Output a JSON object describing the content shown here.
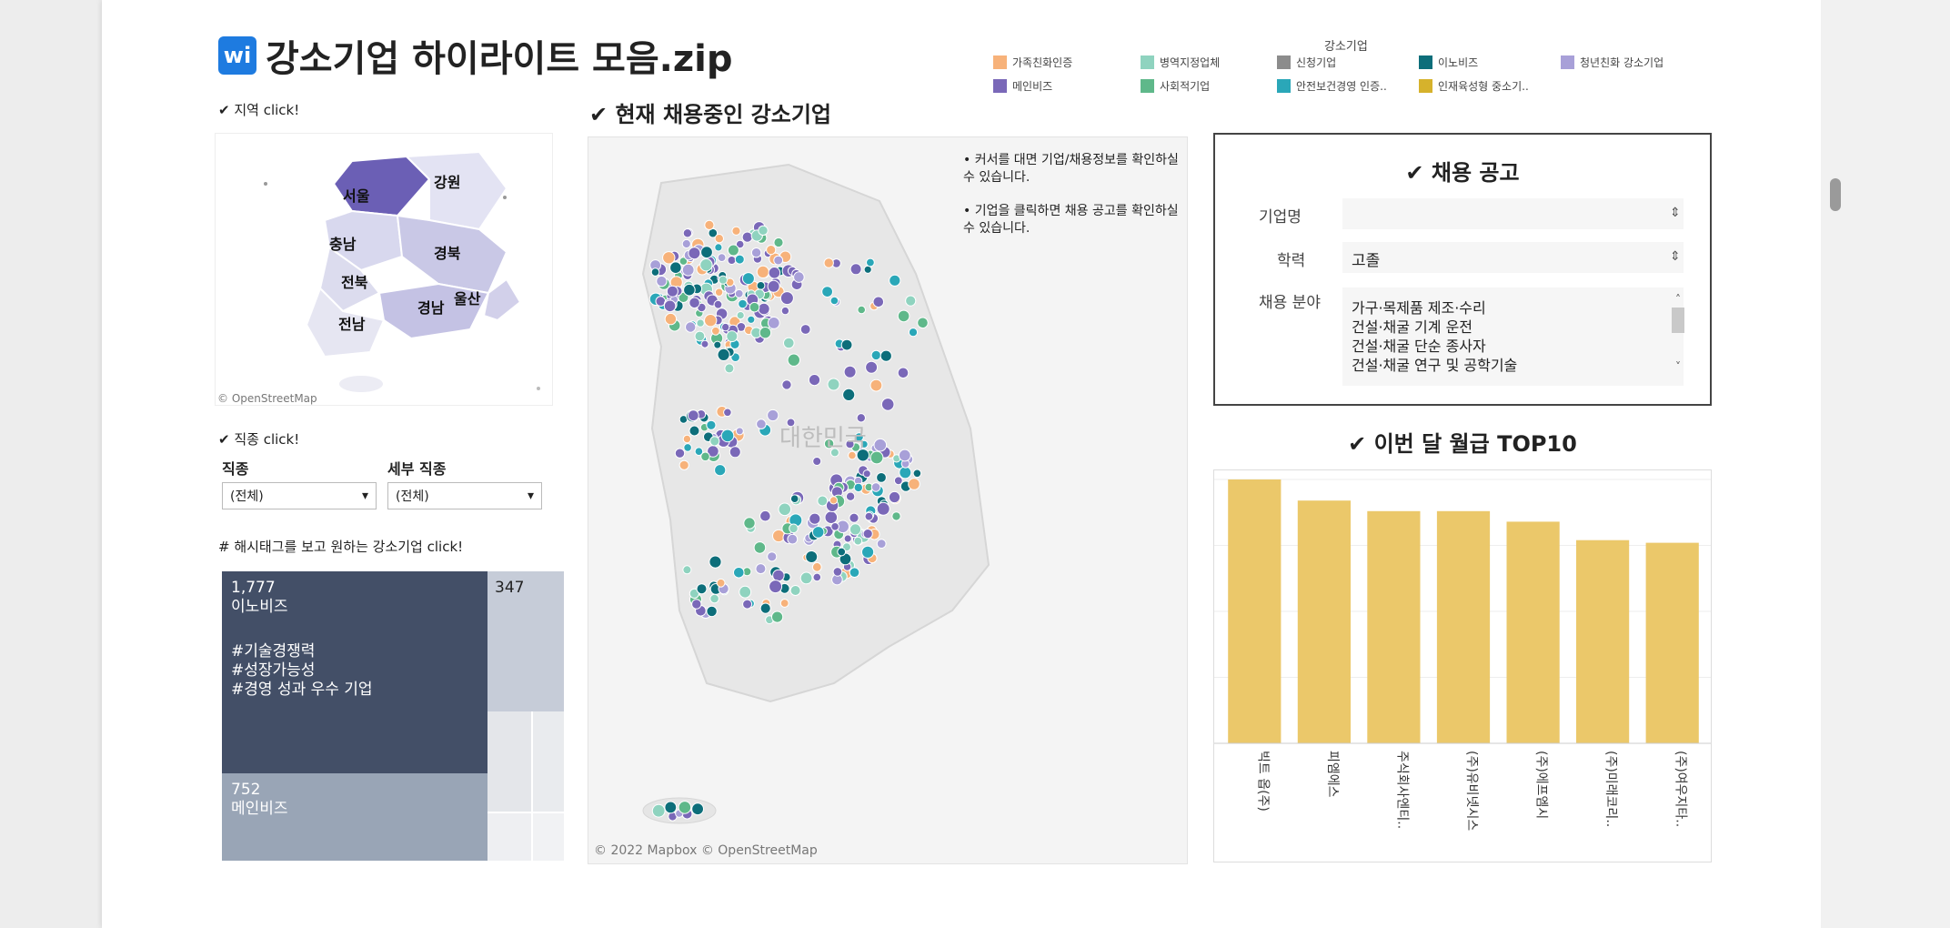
{
  "dashboard": {
    "logo_text": "ᴡi",
    "title": "강소기업 하이라이트 모음.zip"
  },
  "legend": {
    "title": "강소기업",
    "items": [
      {
        "label": "가족친화인증",
        "color": "#f7b27a"
      },
      {
        "label": "병역지정업체",
        "color": "#8fd3bf"
      },
      {
        "label": "신청기업",
        "color": "#8c8c8c"
      },
      {
        "label": "이노비즈",
        "color": "#0d6e7a"
      },
      {
        "label": "청년친화 강소기업",
        "color": "#a8a0d8"
      },
      {
        "label": "메인비즈",
        "color": "#7a68b8"
      },
      {
        "label": "사회적기업",
        "color": "#5fb88a"
      },
      {
        "label": "안전보건경영 인증..",
        "color": "#2aa7b8"
      },
      {
        "label": "인재육성형 중소기..",
        "color": "#d6b22c"
      }
    ]
  },
  "region_panel": {
    "hint": "✔ 지역 click!",
    "regions": [
      "서울",
      "강원",
      "충남",
      "경북",
      "전북",
      "경남",
      "울산",
      "전남"
    ],
    "attribution": "© OpenStreetMap"
  },
  "job_filter": {
    "hint": "✔ 직종 click!",
    "job_label": "직종",
    "job_value": "(전체)",
    "detail_label": "세부 직종",
    "detail_value": "(전체)"
  },
  "hashtag_panel": {
    "hint": "# 해시태그를 보고 원하는 강소기업 click!",
    "tiles": [
      {
        "count": "1,777",
        "name": "이노비즈",
        "tags": [
          "#기술경쟁력",
          "#성장가능성",
          "#경영 성과 우수 기업"
        ]
      },
      {
        "count": "347",
        "name": ""
      },
      {
        "count": "752",
        "name": "메인비즈"
      }
    ]
  },
  "main_map": {
    "title": "✔ 현재 채용중인 강소기업",
    "tips": [
      "• 커서를 대면 기업/채용정보를 확인하실 수 있습니다.",
      "• 기업을 클릭하면 채용 공고를 확인하실 수 있습니다."
    ],
    "country_label": "대한민국",
    "attribution": "© 2022 Mapbox © OpenStreetMap"
  },
  "recruit_panel": {
    "title": "✔ 채용 공고",
    "company_label": "기업명",
    "company_value": "",
    "education_label": "학력",
    "education_value": "고졸",
    "field_label": "채용 분야",
    "field_options": [
      "가구·목제품 제조·수리",
      "건설·채굴 기계 운전",
      "건설·채굴 단순 종사자",
      "건설·채굴 연구 및 공학기술"
    ]
  },
  "salary_chart": {
    "title": "✔ 이번 달 월급 TOP10"
  },
  "chart_data": {
    "type": "bar",
    "title": "✔ 이번 달 월급 TOP10",
    "categories": [
      "빅트 옵(주)",
      "피엠에스",
      "주식회사엔티..",
      "(주)유비넷시스",
      "(주)에프엠시",
      "(주)미래코리..",
      "(주)여우지타.."
    ],
    "values": [
      100,
      92,
      88,
      88,
      84,
      77,
      76
    ],
    "color": "#ebc86a",
    "grid": true,
    "legend": "none"
  }
}
